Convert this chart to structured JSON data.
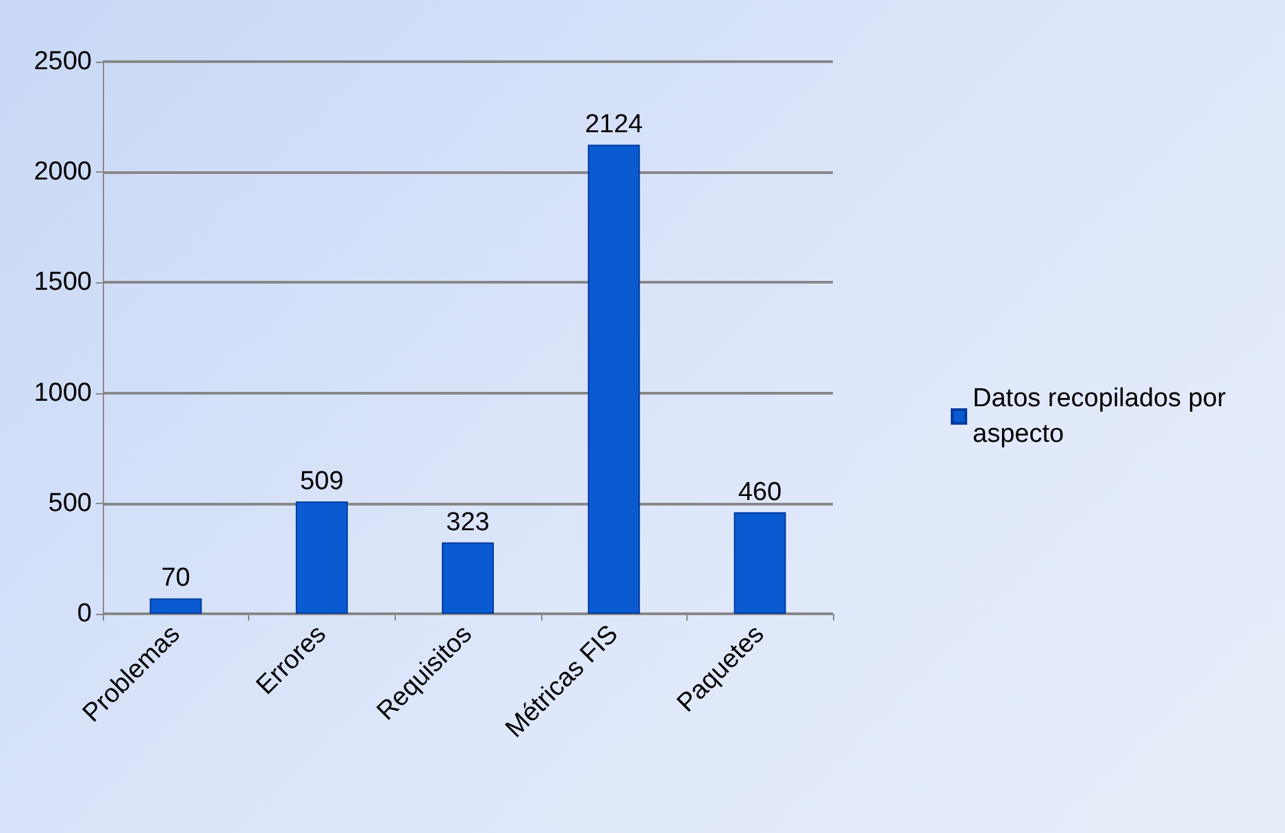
{
  "chart_data": {
    "type": "bar",
    "categories": [
      "Problemas",
      "Errores",
      "Requisitos",
      "Métricas FIS",
      "Paquetes"
    ],
    "series": [
      {
        "name": "Datos recopilados por aspecto",
        "color": "#0a5ad2",
        "values": [
          70,
          509,
          323,
          2124,
          460
        ]
      }
    ],
    "ylim": [
      0,
      2500
    ],
    "yticks": [
      0,
      500,
      1000,
      1500,
      2000,
      2500
    ],
    "grid": "y",
    "legend": "right",
    "data_labels": true
  }
}
